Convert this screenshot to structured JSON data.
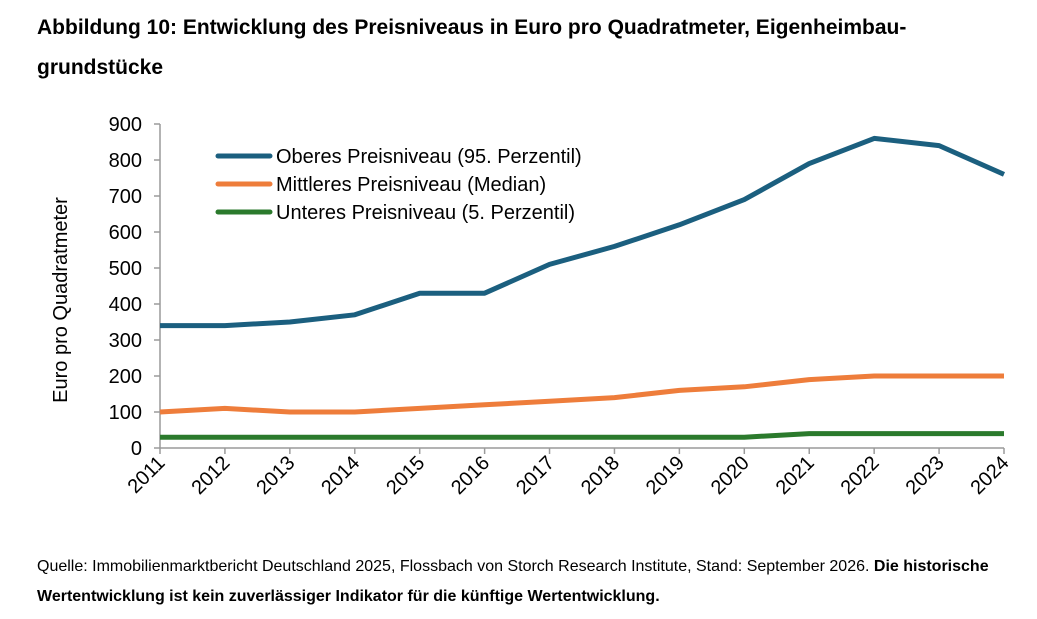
{
  "title": "Abbildung 10: Entwicklung des Preisniveaus in Euro pro Quadratmeter, Eigenheimbau-grundstücke",
  "source_text": "Quelle: Immobilienmarktbericht Deutschland 2025, Flossbach von Storch Research Institute, Stand: September 2026.",
  "disclaimer": "Die historische Wertentwicklung ist kein zuverlässiger Indikator für die künftige Wertentwicklung.",
  "chart_data": {
    "type": "line",
    "ylabel": "Euro pro Quadratmeter",
    "ylim": [
      0,
      900
    ],
    "yticks": [
      0,
      100,
      200,
      300,
      400,
      500,
      600,
      700,
      800,
      900
    ],
    "grid": false,
    "legend_position": "top-left",
    "categories": [
      "2011",
      "2012",
      "2013",
      "2014",
      "2015",
      "2016",
      "2017",
      "2018",
      "2019",
      "2020",
      "2021",
      "2022",
      "2023",
      "2024"
    ],
    "series": [
      {
        "name": "Oberes Preisniveau (95. Perzentil)",
        "color": "#1b5f7f",
        "values": [
          340,
          340,
          350,
          370,
          430,
          430,
          510,
          560,
          620,
          690,
          790,
          860,
          840,
          760
        ]
      },
      {
        "name": "Mittleres Preisniveau (Median)",
        "color": "#ee7d3b",
        "values": [
          100,
          110,
          100,
          100,
          110,
          120,
          130,
          140,
          160,
          170,
          190,
          200,
          200,
          200
        ]
      },
      {
        "name": "Unteres Preisniveau (5. Perzentil)",
        "color": "#2b7a2c",
        "values": [
          30,
          30,
          30,
          30,
          30,
          30,
          30,
          30,
          30,
          30,
          40,
          40,
          40,
          40
        ]
      }
    ]
  }
}
